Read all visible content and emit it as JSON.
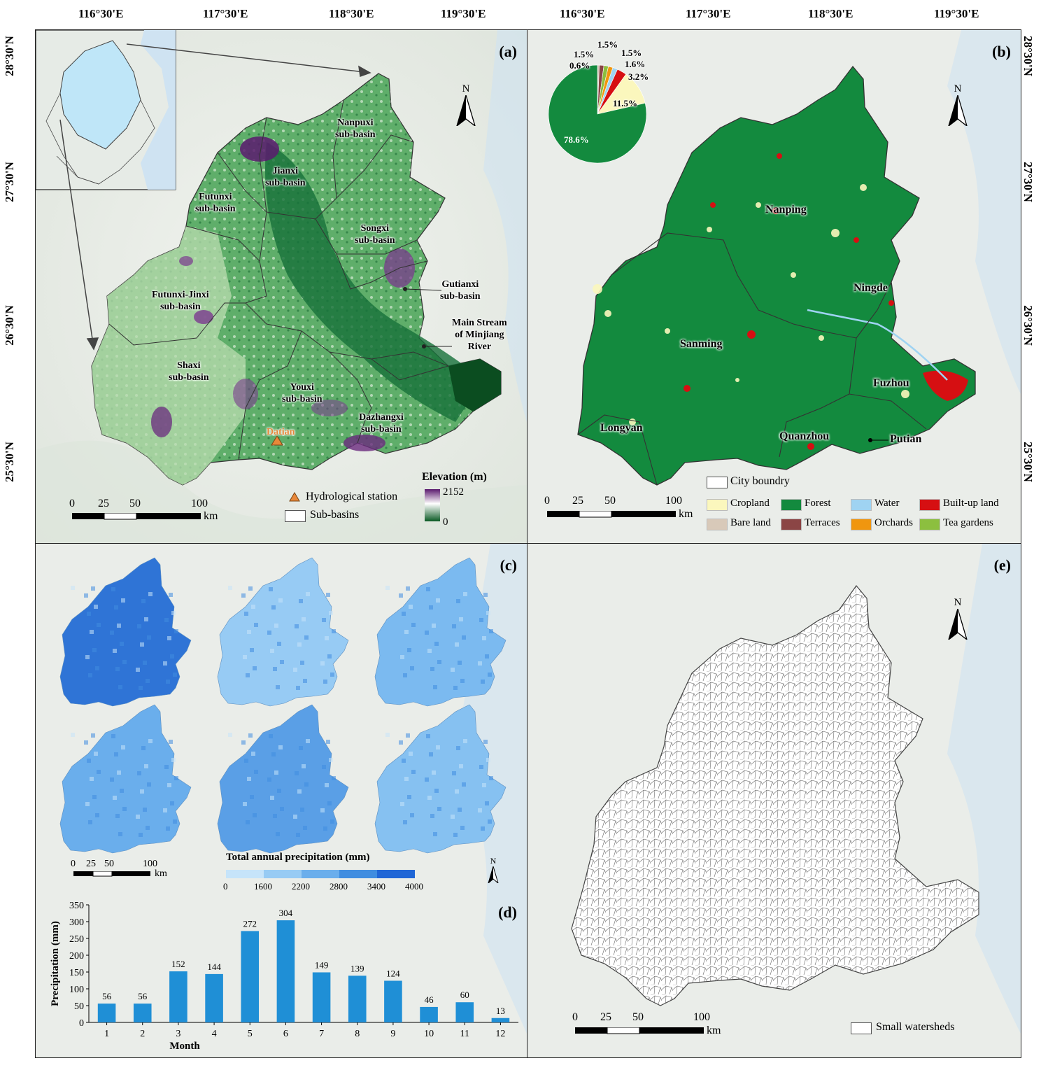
{
  "top_axis": [
    "116°30'E",
    "117°30'E",
    "118°30'E",
    "119°30'E"
  ],
  "left_axis": [
    "28°30'N",
    "27°30'N",
    "26°30'N",
    "25°30'N"
  ],
  "right_axis": [
    "28°30'N",
    "27°30'N",
    "26°30'N",
    "25°30'N"
  ],
  "panel_a": {
    "label": "(a)",
    "north": "N",
    "subbasins": {
      "nanpuxi": "Nanpuxi\nsub-basin",
      "jianxi": "Jianxi\nsub-basin",
      "futunxi": "Futunxi\nsub-basin",
      "songxi": "Songxi\nsub-basin",
      "futunxi_jinxi": "Futunxi-Jinxi\nsub-basin",
      "gutianxi": "Gutianxi\nsub-basin",
      "main_stream": "Main Stream\nof Minjiang\nRiver",
      "shaxi": "Shaxi\nsub-basin",
      "youxi": "Youxi\nsub-basin",
      "dazhangxi": "Dazhangxi\nsub-basin"
    },
    "station_name": "Datian",
    "scale": [
      "0",
      "25",
      "50",
      "100",
      "km"
    ],
    "legend": {
      "station": "Hydrological station",
      "subbasins": "Sub-basins",
      "elevation_title": "Elevation (m)",
      "elev_max": "2152",
      "elev_min": "0"
    },
    "colors": {
      "station": "#e8883a",
      "elev_high": "#5a1a6e",
      "elev_low": "#0b5a25"
    }
  },
  "panel_b": {
    "label": "(b)",
    "north": "N",
    "cities": {
      "nanping": "Nanping",
      "ningde": "Ningde",
      "sanming": "Sanming",
      "fuzhou": "Fuzhou",
      "longyan": "Longyan",
      "quanzhou": "Quanzhou",
      "putian": "Putian"
    },
    "pie": {
      "slices": [
        {
          "name": "Forest",
          "value": 78.6,
          "label": "78.6%",
          "color": "#138a3e"
        },
        {
          "name": "Cropland",
          "value": 11.5,
          "label": "11.5%",
          "color": "#fbf7bd"
        },
        {
          "name": "Built-up land",
          "value": 3.2,
          "label": "3.2%",
          "color": "#d60f12"
        },
        {
          "name": "Water",
          "value": 1.6,
          "label": "1.6%",
          "color": "#9fd3f2"
        },
        {
          "name": "Orchards",
          "value": 1.5,
          "label": "1.5%",
          "color": "#f0960f"
        },
        {
          "name": "Tea gardens",
          "value": 1.5,
          "label": "1.5%",
          "color": "#8cbf3f"
        },
        {
          "name": "Terraces",
          "value": 1.5,
          "label": "1.5%",
          "color": "#8b4545"
        },
        {
          "name": "Bare land",
          "value": 0.6,
          "label": "0.6%",
          "color": "#d8c9b9"
        }
      ]
    },
    "scale": [
      "0",
      "25",
      "50",
      "100",
      "km"
    ],
    "legend": {
      "city": "City boundry",
      "items": [
        {
          "name": "Cropland",
          "color": "#fbf7bd"
        },
        {
          "name": "Forest",
          "color": "#138a3e"
        },
        {
          "name": "Water",
          "color": "#9fd3f2"
        },
        {
          "name": "Built-up land",
          "color": "#d60f12"
        },
        {
          "name": "Bare land",
          "color": "#d8c9b9"
        },
        {
          "name": "Terraces",
          "color": "#8b4545"
        },
        {
          "name": "Orchards",
          "color": "#f0960f"
        },
        {
          "name": "Tea gardens",
          "color": "#8cbf3f"
        }
      ]
    }
  },
  "panel_c": {
    "label": "(c)",
    "north": "N",
    "scale": [
      "0",
      "25",
      "50",
      "100",
      "km"
    ],
    "legend_title": "Total annual precipitation (mm)",
    "legend_ticks": [
      "0",
      "1600",
      "2200",
      "2800",
      "3400",
      "4000"
    ],
    "legend_colors": [
      "#c6e4fa",
      "#97cbf4",
      "#6aaeec",
      "#3f8de0",
      "#1f66d6"
    ],
    "map_fills": [
      "#2f74d6",
      "#97cbf4",
      "#7bbaf0",
      "#6aaeec",
      "#5a9fe6",
      "#86c1f1"
    ]
  },
  "panel_d": {
    "label": "(d)",
    "chart_data": {
      "type": "bar",
      "categories": [
        "1",
        "2",
        "3",
        "4",
        "5",
        "6",
        "7",
        "8",
        "9",
        "10",
        "11",
        "12"
      ],
      "values": [
        56,
        56,
        152,
        144,
        272,
        304,
        149,
        139,
        124,
        46,
        60,
        13
      ],
      "xlabel": "Month",
      "ylabel": "Precipitation (mm)",
      "ylim": [
        0,
        350
      ],
      "yticks": [
        "0",
        "50",
        "100",
        "150",
        "200",
        "250",
        "300",
        "350"
      ],
      "bar_color": "#1f8fd6",
      "grid": false
    }
  },
  "panel_e": {
    "label": "(e)",
    "north": "N",
    "scale": [
      "0",
      "25",
      "50",
      "100",
      "km"
    ],
    "legend": "Small watersheds"
  }
}
